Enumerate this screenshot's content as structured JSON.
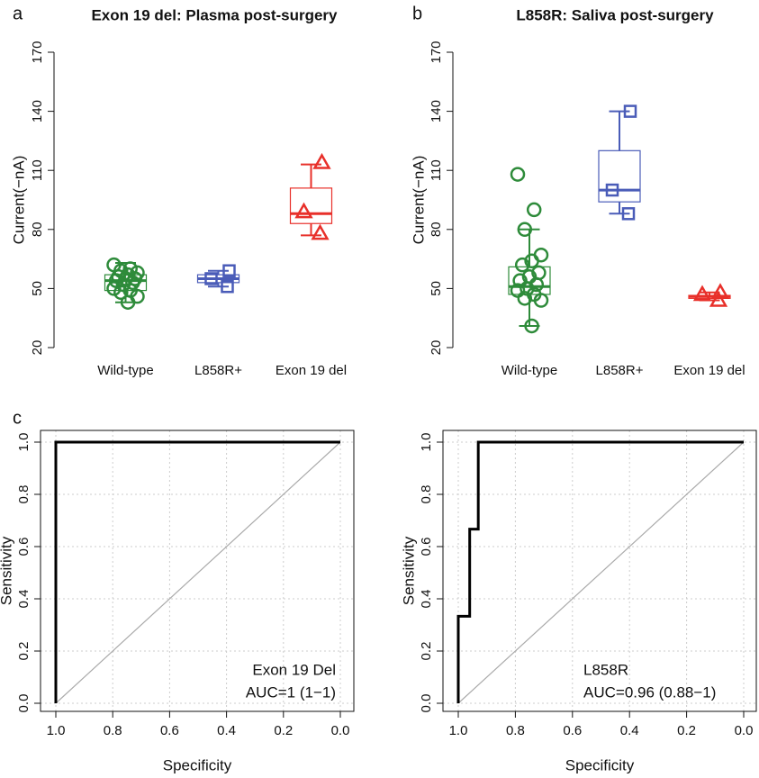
{
  "chart_data": [
    {
      "type": "box",
      "panel_label": "a",
      "title": "Exon 19 del: Plasma post-surgery",
      "ylabel": "Current(−nA)",
      "categories": [
        "Wild-type",
        "L858R+",
        "Exon 19 del"
      ],
      "colors": [
        "#2e8b3a",
        "#4a5cb8",
        "#e8302a"
      ],
      "markers": [
        "circle",
        "square",
        "triangle"
      ],
      "boxes": [
        {
          "whislo": 43,
          "q1": 49,
          "median": 54,
          "q3": 57,
          "whishi": 63,
          "points": [
            62,
            60,
            59,
            58,
            57,
            56,
            55,
            55,
            54,
            53,
            52,
            50,
            49,
            48,
            46,
            43
          ]
        },
        {
          "whislo": 51,
          "q1": 53,
          "median": 55,
          "q3": 57,
          "whishi": 59,
          "points": [
            59,
            55,
            51
          ]
        },
        {
          "whislo": 77,
          "q1": 83,
          "median": 88,
          "q3": 101,
          "whishi": 113,
          "points": [
            114,
            89,
            78
          ]
        }
      ],
      "ylim": [
        20,
        170
      ],
      "yticks": [
        20,
        50,
        80,
        110,
        140,
        170
      ]
    },
    {
      "type": "box",
      "panel_label": "b",
      "title": "L858R: Saliva post-surgery",
      "ylabel": "Current(−nA)",
      "categories": [
        "Wild-type",
        "L858R+",
        "Exon 19 del"
      ],
      "colors": [
        "#2e8b3a",
        "#4a5cb8",
        "#e8302a"
      ],
      "markers": [
        "circle",
        "square",
        "triangle"
      ],
      "boxes": [
        {
          "whislo": 31,
          "q1": 47,
          "median": 51,
          "q3": 61,
          "whishi": 80,
          "points": [
            108,
            90,
            80,
            67,
            64,
            62,
            58,
            56,
            54,
            52,
            50,
            49,
            47,
            45,
            44,
            31
          ]
        },
        {
          "whislo": 88,
          "q1": 94,
          "median": 100,
          "q3": 120,
          "whishi": 140,
          "points": [
            140,
            100,
            88
          ]
        },
        {
          "whislo": 44,
          "q1": 45,
          "median": 46,
          "q3": 46.5,
          "whishi": 48,
          "points": [
            48,
            47,
            44
          ]
        }
      ],
      "ylim": [
        20,
        170
      ],
      "yticks": [
        20,
        50,
        80,
        110,
        140,
        170
      ]
    },
    {
      "type": "line",
      "panel_label": "c",
      "xlabel": "Specificity",
      "ylabel": "Sensitivity",
      "annotations": [
        "Exon 19 Del",
        "AUC=1 (1−1)"
      ],
      "grid": true,
      "series": [
        {
          "color": "#000000",
          "x": [
            1,
            1,
            0
          ],
          "values": [
            0,
            1,
            1
          ]
        }
      ],
      "xlim": [
        1,
        0
      ],
      "xticks": [
        {
          "value": 1,
          "label": "1.0"
        },
        0.8,
        0.6,
        0.4,
        0.2,
        {
          "value": 0,
          "label": "0.0"
        }
      ],
      "ylim": [
        0,
        1
      ],
      "yticks": [
        {
          "value": 0,
          "label": "0.0"
        },
        0.2,
        0.4,
        0.6,
        0.8,
        {
          "value": 1,
          "label": "1.0"
        }
      ]
    },
    {
      "type": "line",
      "xlabel": "Specificity",
      "ylabel": "Sensitivity",
      "annotations": [
        "L858R",
        "AUC=0.96 (0.88−1)"
      ],
      "grid": true,
      "series": [
        {
          "color": "#000000",
          "x": [
            1,
            1,
            0.96,
            0.96,
            0.93,
            0.93,
            0
          ],
          "values": [
            0,
            0.333,
            0.333,
            0.667,
            0.667,
            1,
            1
          ]
        }
      ],
      "xlim": [
        1,
        0
      ],
      "xticks": [
        {
          "value": 1,
          "label": "1.0"
        },
        0.8,
        0.6,
        0.4,
        0.2,
        {
          "value": 0,
          "label": "0.0"
        }
      ],
      "ylim": [
        0,
        1
      ],
      "yticks": [
        {
          "value": 0,
          "label": "0.0"
        },
        0.2,
        0.4,
        0.6,
        0.8,
        {
          "value": 1,
          "label": "1.0"
        }
      ]
    }
  ]
}
